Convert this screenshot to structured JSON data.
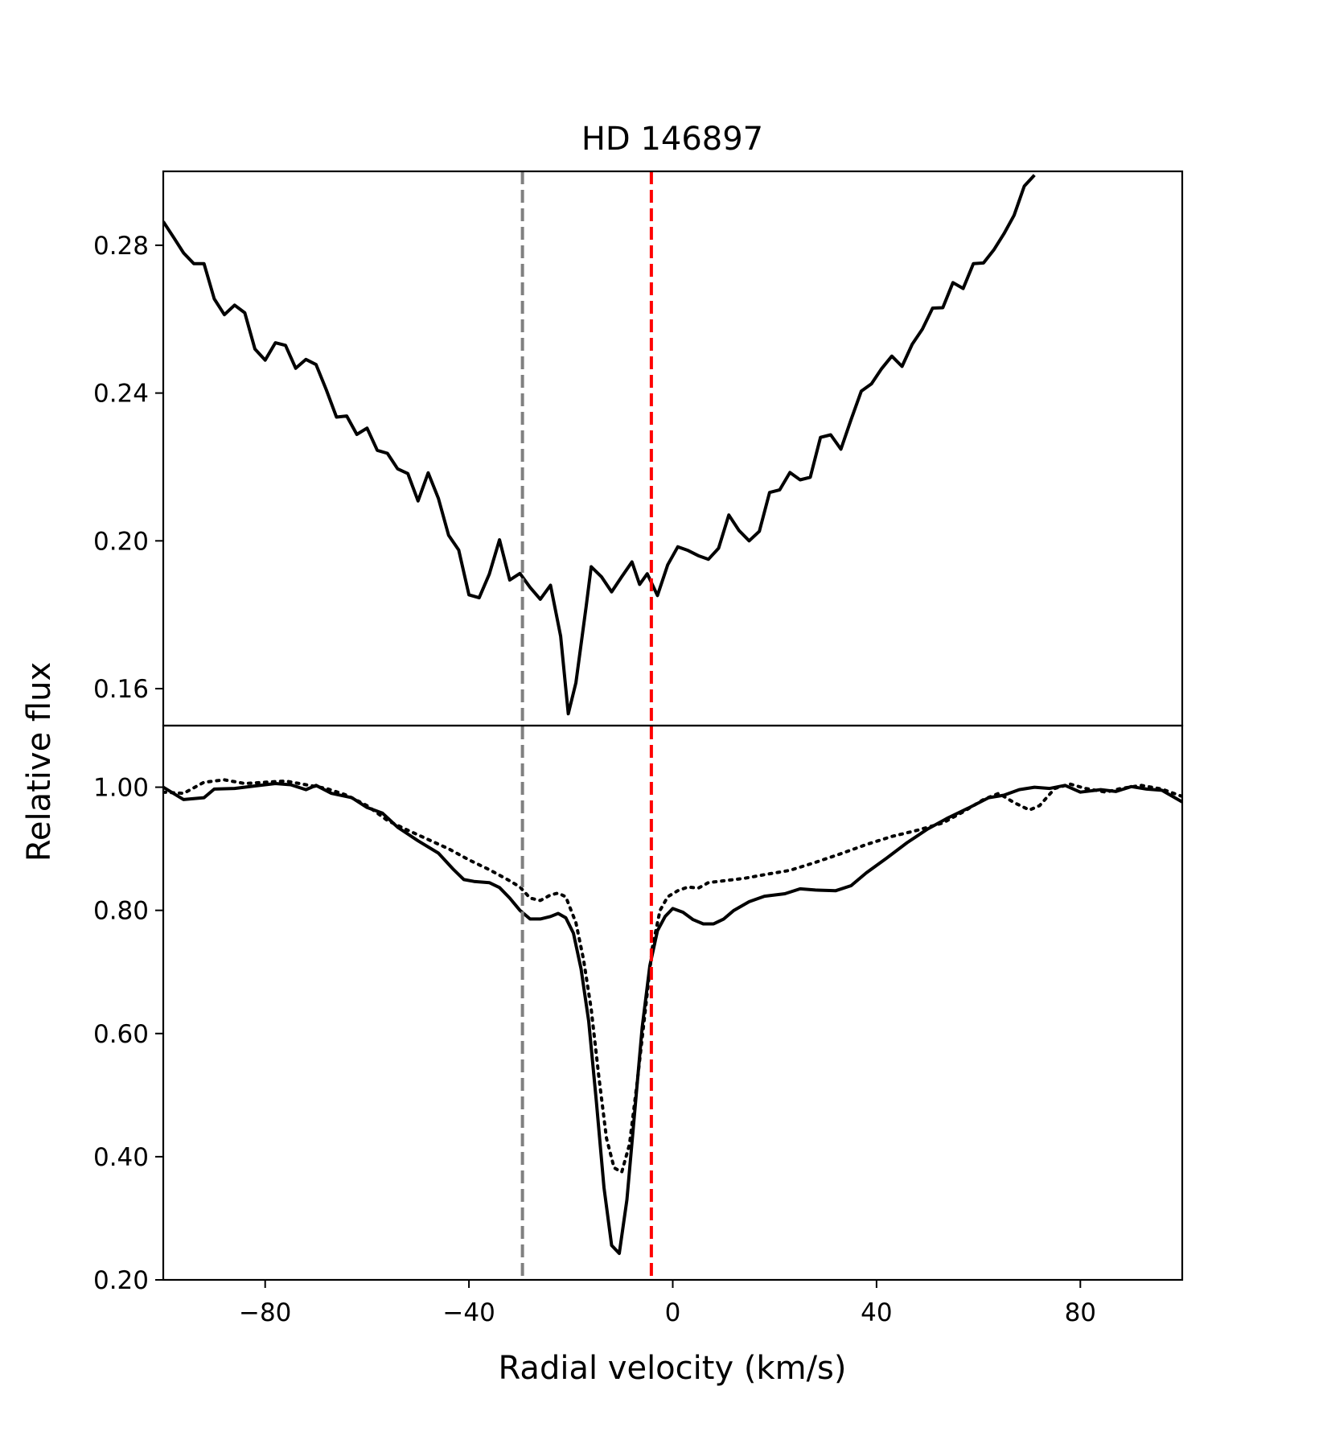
{
  "chart_data": {
    "title": "HD 146897",
    "xlabel": "Radial velocity (km/s)",
    "ylabel": "Relative flux",
    "xlim": [
      -100,
      100
    ],
    "xticks": [
      -80,
      -40,
      0,
      40,
      80
    ],
    "xtick_labels": [
      "−80",
      "−40",
      "0",
      "40",
      "80"
    ],
    "vlines": [
      {
        "x": -29.5,
        "color": "#808080",
        "style": "dashed"
      },
      {
        "x": -4.2,
        "color": "#ff0000",
        "style": "dashed"
      }
    ],
    "panels": [
      {
        "type": "line",
        "ylim": [
          0.15,
          0.3
        ],
        "yticks": [
          0.16,
          0.2,
          0.24,
          0.28
        ],
        "ytick_labels": [
          "0.16",
          "0.20",
          "0.24",
          "0.28"
        ],
        "series": [
          {
            "style": "solid",
            "color": "#000000",
            "points": [
              [
                -100,
                0.2864
              ],
              [
                -98,
                0.2822
              ],
              [
                -96,
                0.2779
              ],
              [
                -94,
                0.275
              ],
              [
                -92,
                0.275
              ],
              [
                -90,
                0.2655
              ],
              [
                -88,
                0.2612
              ],
              [
                -86,
                0.2638
              ],
              [
                -84,
                0.2617
              ],
              [
                -82,
                0.2519
              ],
              [
                -80,
                0.2489
              ],
              [
                -78,
                0.2536
              ],
              [
                -76,
                0.2529
              ],
              [
                -74,
                0.2467
              ],
              [
                -72,
                0.2491
              ],
              [
                -70,
                0.2477
              ],
              [
                -68,
                0.2409
              ],
              [
                -66,
                0.2335
              ],
              [
                -64,
                0.2338
              ],
              [
                -62,
                0.2288
              ],
              [
                -60,
                0.2305
              ],
              [
                -58,
                0.2245
              ],
              [
                -56,
                0.2237
              ],
              [
                -54,
                0.2195
              ],
              [
                -52,
                0.2182
              ],
              [
                -50,
                0.2108
              ],
              [
                -48,
                0.2184
              ],
              [
                -46,
                0.2115
              ],
              [
                -44,
                0.2015
              ],
              [
                -42,
                0.1975
              ],
              [
                -40,
                0.1854
              ],
              [
                -38,
                0.1846
              ],
              [
                -36,
                0.191
              ],
              [
                -34,
                0.2003
              ],
              [
                -32,
                0.1894
              ],
              [
                -30,
                0.1912
              ],
              [
                -28,
                0.1874
              ],
              [
                -26,
                0.1842
              ],
              [
                -24,
                0.188
              ],
              [
                -22,
                0.1742
              ],
              [
                -20.5,
                0.1532
              ],
              [
                -19,
                0.1616
              ],
              [
                -17,
                0.1822
              ],
              [
                -16,
                0.193
              ],
              [
                -14,
                0.1903
              ],
              [
                -12,
                0.1862
              ],
              [
                -10,
                0.1903
              ],
              [
                -8,
                0.1943
              ],
              [
                -6.5,
                0.1882
              ],
              [
                -5,
                0.1911
              ],
              [
                -3,
                0.1852
              ],
              [
                -1,
                0.1935
              ],
              [
                1,
                0.1984
              ],
              [
                3,
                0.1974
              ],
              [
                5,
                0.196
              ],
              [
                7,
                0.195
              ],
              [
                9,
                0.198
              ],
              [
                11,
                0.207
              ],
              [
                13,
                0.2028
              ],
              [
                15,
                0.2
              ],
              [
                17,
                0.2026
              ],
              [
                19,
                0.2131
              ],
              [
                21,
                0.2138
              ],
              [
                23,
                0.2185
              ],
              [
                25,
                0.2165
              ],
              [
                27,
                0.2172
              ],
              [
                29,
                0.228
              ],
              [
                31,
                0.2287
              ],
              [
                33,
                0.2248
              ],
              [
                35,
                0.2328
              ],
              [
                37,
                0.2405
              ],
              [
                39,
                0.2425
              ],
              [
                41,
                0.2466
              ],
              [
                43,
                0.25
              ],
              [
                45,
                0.2472
              ],
              [
                47,
                0.2532
              ],
              [
                49,
                0.2573
              ],
              [
                51,
                0.263
              ],
              [
                53,
                0.2631
              ],
              [
                55,
                0.2699
              ],
              [
                57,
                0.2683
              ],
              [
                59,
                0.275
              ],
              [
                61,
                0.2752
              ],
              [
                63,
                0.2787
              ],
              [
                65,
                0.2831
              ],
              [
                67,
                0.2881
              ],
              [
                69,
                0.296
              ],
              [
                71,
                0.299
              ]
            ]
          }
        ]
      },
      {
        "type": "line",
        "ylim": [
          0.2,
          1.1
        ],
        "yticks": [
          0.2,
          0.4,
          0.6,
          0.8,
          1.0
        ],
        "ytick_labels": [
          "0.20",
          "0.40",
          "0.60",
          "0.80",
          "1.00"
        ],
        "series": [
          {
            "style": "solid",
            "color": "#000000",
            "points": [
              [
                -100,
                1.0
              ],
              [
                -96,
                0.98
              ],
              [
                -92,
                0.983
              ],
              [
                -90,
                0.997
              ],
              [
                -86,
                0.998
              ],
              [
                -82,
                1.002
              ],
              [
                -78,
                1.006
              ],
              [
                -75,
                1.004
              ],
              [
                -72,
                0.996
              ],
              [
                -70,
                1.003
              ],
              [
                -67,
                0.99
              ],
              [
                -63,
                0.983
              ],
              [
                -60,
                0.967
              ],
              [
                -57,
                0.958
              ],
              [
                -54,
                0.935
              ],
              [
                -50,
                0.913
              ],
              [
                -46,
                0.893
              ],
              [
                -43,
                0.866
              ],
              [
                -41,
                0.85
              ],
              [
                -39,
                0.847
              ],
              [
                -36,
                0.845
              ],
              [
                -34,
                0.837
              ],
              [
                -32,
                0.82
              ],
              [
                -30,
                0.8
              ],
              [
                -28,
                0.786
              ],
              [
                -26,
                0.786
              ],
              [
                -24,
                0.79
              ],
              [
                -22.5,
                0.795
              ],
              [
                -21,
                0.788
              ],
              [
                -19.5,
                0.763
              ],
              [
                -18,
                0.705
              ],
              [
                -16.5,
                0.62
              ],
              [
                -15,
                0.49
              ],
              [
                -13.5,
                0.35
              ],
              [
                -12,
                0.256
              ],
              [
                -10.5,
                0.243
              ],
              [
                -9,
                0.33
              ],
              [
                -7.5,
                0.47
              ],
              [
                -6,
                0.61
              ],
              [
                -4.5,
                0.71
              ],
              [
                -3,
                0.767
              ],
              [
                -1.5,
                0.79
              ],
              [
                0,
                0.803
              ],
              [
                2,
                0.797
              ],
              [
                4,
                0.785
              ],
              [
                6,
                0.778
              ],
              [
                8,
                0.778
              ],
              [
                10,
                0.786
              ],
              [
                12,
                0.8
              ],
              [
                15,
                0.814
              ],
              [
                18,
                0.823
              ],
              [
                22,
                0.827
              ],
              [
                25,
                0.835
              ],
              [
                28,
                0.833
              ],
              [
                32,
                0.832
              ],
              [
                35,
                0.84
              ],
              [
                38,
                0.861
              ],
              [
                42,
                0.885
              ],
              [
                46,
                0.91
              ],
              [
                50,
                0.932
              ],
              [
                54,
                0.95
              ],
              [
                58,
                0.966
              ],
              [
                62,
                0.983
              ],
              [
                65,
                0.987
              ],
              [
                68,
                0.996
              ],
              [
                71,
                1.0
              ],
              [
                74,
                0.998
              ],
              [
                77,
                1.003
              ],
              [
                80,
                0.992
              ],
              [
                84,
                0.996
              ],
              [
                87,
                0.993
              ],
              [
                90,
                1.001
              ],
              [
                93,
                0.997
              ],
              [
                96,
                0.995
              ],
              [
                100,
                0.976
              ]
            ]
          },
          {
            "style": "dotted",
            "color": "#000000",
            "points": [
              [
                -100,
                0.992
              ],
              [
                -96,
                0.99
              ],
              [
                -92,
                1.008
              ],
              [
                -88,
                1.012
              ],
              [
                -84,
                1.006
              ],
              [
                -80,
                1.008
              ],
              [
                -76,
                1.01
              ],
              [
                -72,
                1.004
              ],
              [
                -68,
                0.998
              ],
              [
                -64,
                0.987
              ],
              [
                -60,
                0.97
              ],
              [
                -56,
                0.946
              ],
              [
                -52,
                0.93
              ],
              [
                -48,
                0.915
              ],
              [
                -44,
                0.9
              ],
              [
                -40,
                0.882
              ],
              [
                -36,
                0.866
              ],
              [
                -32,
                0.848
              ],
              [
                -30,
                0.838
              ],
              [
                -28,
                0.82
              ],
              [
                -26,
                0.816
              ],
              [
                -24,
                0.825
              ],
              [
                -22.5,
                0.828
              ],
              [
                -21,
                0.822
              ],
              [
                -19,
                0.78
              ],
              [
                -17.5,
                0.72
              ],
              [
                -16,
                0.64
              ],
              [
                -14.5,
                0.53
              ],
              [
                -13,
                0.43
              ],
              [
                -11.5,
                0.382
              ],
              [
                -10,
                0.375
              ],
              [
                -8.5,
                0.42
              ],
              [
                -7,
                0.52
              ],
              [
                -5.5,
                0.63
              ],
              [
                -4,
                0.74
              ],
              [
                -2.5,
                0.8
              ],
              [
                -1,
                0.822
              ],
              [
                1,
                0.832
              ],
              [
                3,
                0.838
              ],
              [
                5,
                0.836
              ],
              [
                7,
                0.845
              ],
              [
                10,
                0.848
              ],
              [
                14,
                0.852
              ],
              [
                18,
                0.858
              ],
              [
                23,
                0.865
              ],
              [
                28,
                0.878
              ],
              [
                33,
                0.892
              ],
              [
                38,
                0.907
              ],
              [
                43,
                0.92
              ],
              [
                48,
                0.93
              ],
              [
                53,
                0.942
              ],
              [
                57,
                0.96
              ],
              [
                61,
                0.98
              ],
              [
                64,
                0.99
              ],
              [
                67,
                0.975
              ],
              [
                70,
                0.963
              ],
              [
                72,
                0.97
              ],
              [
                75,
                0.998
              ],
              [
                78,
                1.005
              ],
              [
                81,
                0.998
              ],
              [
                85,
                0.992
              ],
              [
                88,
                0.998
              ],
              [
                92,
                1.003
              ],
              [
                96,
                0.997
              ],
              [
                100,
                0.985
              ]
            ]
          }
        ]
      }
    ]
  }
}
